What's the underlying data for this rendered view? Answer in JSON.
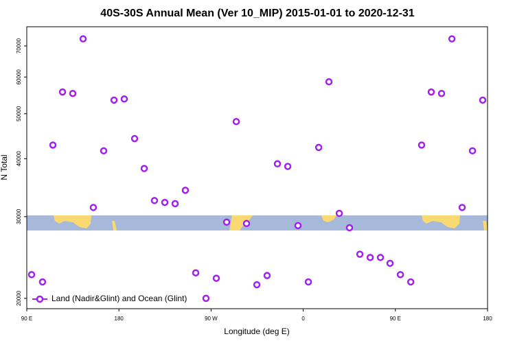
{
  "chart_data": {
    "type": "scatter",
    "title": "40S-30S Annual Mean (Ver 10_MIP)   2015-01-01 to 2020-12-31",
    "x_label": "Longitude (deg E)",
    "y_label": "N Total",
    "yscale": "log",
    "legend": "lower left",
    "xlim": [
      90,
      540
    ],
    "ylim": [
      19000,
      77000
    ],
    "xticks": [
      {
        "value": 90,
        "label": "90 E"
      },
      {
        "value": 180,
        "label": "180"
      },
      {
        "value": 270,
        "label": "90 W"
      },
      {
        "value": 360,
        "label": "0"
      },
      {
        "value": 450,
        "label": "90 E"
      },
      {
        "value": 540,
        "label": "180"
      }
    ],
    "yticks": [
      20000,
      30000,
      40000,
      50000,
      60000,
      70000
    ],
    "series": [
      {
        "name": "Land (Nadir&Glint) and Ocean (Glint)",
        "color": "#a020f0",
        "x": [
          94.7,
          105.4,
          115.5,
          124.9,
          134.9,
          145,
          155,
          165.1,
          175.2,
          185.2,
          195.3,
          204.7,
          214.7,
          224.8,
          234.9,
          244.9,
          255,
          265,
          275.1,
          285.2,
          294.6,
          304.6,
          314.7,
          324.7,
          334.8,
          344.9,
          354.9,
          365,
          375.1,
          385.1,
          395.2,
          405.2,
          415.3,
          425.4,
          435.4,
          444.8,
          454.9,
          465,
          475.6,
          485,
          495.1,
          505.2,
          515.2,
          525.3,
          535.3
        ],
        "values": [
          22500,
          21700,
          42800,
          55700,
          55300,
          72500,
          31400,
          41600,
          53500,
          53800,
          44200,
          38100,
          32500,
          32200,
          32000,
          34200,
          22700,
          20000,
          22100,
          29200,
          48100,
          29000,
          21400,
          22400,
          39000,
          38500,
          28700,
          21700,
          42300,
          58600,
          30500,
          28400,
          24900,
          24500,
          24500,
          23800,
          22500,
          21700,
          42800,
          55700,
          55300,
          72500,
          31400,
          41600,
          53500
        ]
      }
    ]
  }
}
